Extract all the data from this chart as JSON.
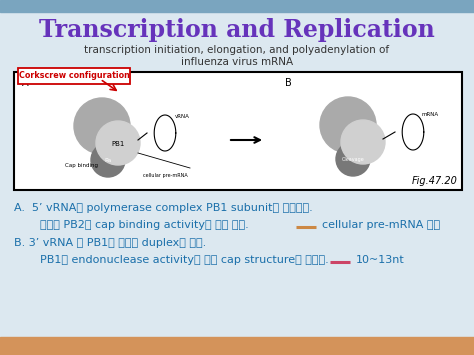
{
  "title": "Transcription and Replication",
  "subtitle1": "transcription initiation, elongation, and polyadenylation of",
  "subtitle2": "influenza virus mRNA",
  "title_color": "#6633bb",
  "subtitle_color": "#333333",
  "slide_bg": "#dce8f0",
  "bottom_bar_color": "#d4935a",
  "top_bar_color": "#7aa5bf",
  "box_label": "Corkscrew configuration",
  "box_label_color": "#cc0000",
  "fig_label": "Fig.47.20",
  "line_A": "A.  5’ vRNA가 polymerase complex PB1 subunit에 위치한다.",
  "line_B1": "    그러면 PB2의 cap binding activity가 활성 된다.",
  "line_B1_extra": "cellular pre-mRNA 부착",
  "line_C": "B. 3’ vRNA 가 PB1에 빙어서 duplex가 된다.",
  "line_D": "    PB1의 endonuclease activity에 의해 cap structure가 잘린다.",
  "line_D_extra": "10~13nt",
  "text_color_blue": "#1a6faa",
  "arrow_color_orange": "#cc8844",
  "arrow_color_pink": "#cc4466"
}
